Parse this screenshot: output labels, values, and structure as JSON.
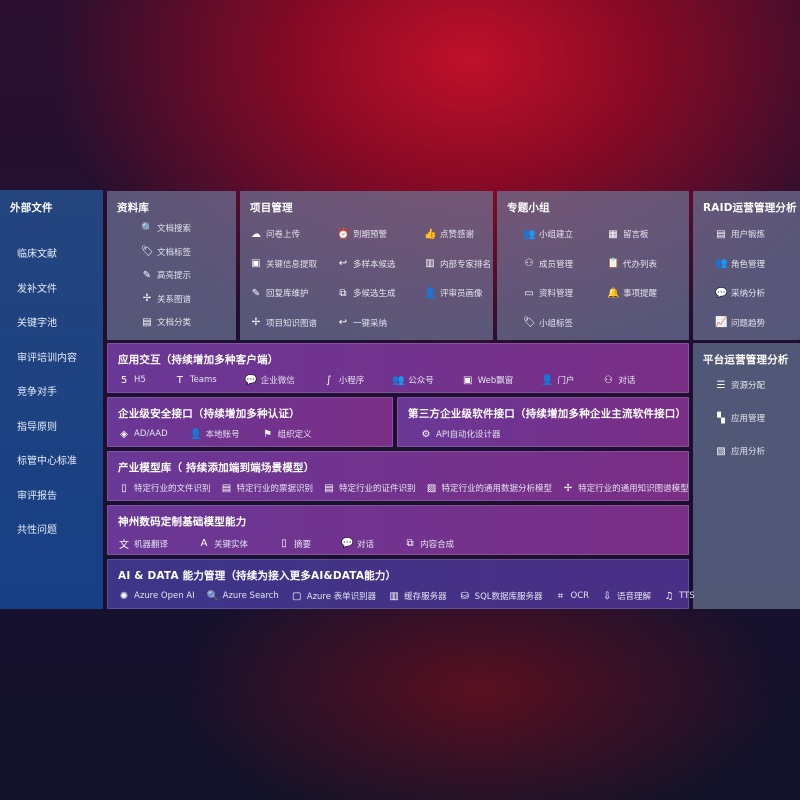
{
  "left": {
    "title": "外部文件",
    "items": [
      "临床文献",
      "发补文件",
      "关键字池",
      "审评培训内容",
      "竞争对手",
      "指导原则",
      "标管中心标准",
      "审评报告",
      "共性问题"
    ]
  },
  "library": {
    "title": "资料库",
    "items": [
      {
        "icon": "document-search",
        "label": "文档搜索"
      },
      {
        "icon": "tag",
        "label": "文档标签"
      },
      {
        "icon": "pen",
        "label": "高亮提示"
      },
      {
        "icon": "graph",
        "label": "关系图谱"
      },
      {
        "icon": "document-classify",
        "label": "文档分类"
      }
    ]
  },
  "project": {
    "title": "项目管理",
    "items": [
      {
        "icon": "cloud-upload",
        "label": "问卷上传"
      },
      {
        "icon": "alarm",
        "label": "到期预警"
      },
      {
        "icon": "thumbs-up",
        "label": "点赞感谢"
      },
      {
        "icon": "window",
        "label": "关键信息提取"
      },
      {
        "icon": "reply",
        "label": "多样本候选"
      },
      {
        "icon": "ranking",
        "label": "内部专家排名"
      },
      {
        "icon": "pen",
        "label": "回复库维护"
      },
      {
        "icon": "puzzle",
        "label": "多候选生成"
      },
      {
        "icon": "user",
        "label": "评审员画像"
      },
      {
        "icon": "graph",
        "label": "项目知识图谱"
      },
      {
        "icon": "reply",
        "label": "一键采纳"
      }
    ]
  },
  "group": {
    "title": "专题小组",
    "items": [
      {
        "icon": "users",
        "label": "小组建立"
      },
      {
        "icon": "bbs",
        "label": "留言板"
      },
      {
        "icon": "user-add",
        "label": "成员管理"
      },
      {
        "icon": "clipboard",
        "label": "代办列表"
      },
      {
        "icon": "folder",
        "label": "资料管理"
      },
      {
        "icon": "bell",
        "label": "事项提醒"
      },
      {
        "icon": "tag",
        "label": "小组标签"
      }
    ]
  },
  "raid": {
    "title": "RAID运营管理分析",
    "items": [
      {
        "icon": "id-card",
        "label": "用户锻炼"
      },
      {
        "icon": "users",
        "label": "角色管理"
      },
      {
        "icon": "qa",
        "label": "采纳分析"
      },
      {
        "icon": "trend",
        "label": "问题趋势"
      }
    ]
  },
  "platform": {
    "title": "平台运营管理分析",
    "items": [
      {
        "icon": "checklist",
        "label": "资源分配"
      },
      {
        "icon": "apps",
        "label": "应用管理"
      },
      {
        "icon": "chart",
        "label": "应用分析"
      }
    ]
  },
  "app": {
    "title": "应用交互（持续增加多种客户端）",
    "items": [
      {
        "icon": "html5",
        "label": "H5"
      },
      {
        "icon": "teams",
        "label": "Teams"
      },
      {
        "icon": "wechat",
        "label": "企业微信"
      },
      {
        "icon": "mini-program",
        "label": "小程序"
      },
      {
        "icon": "users",
        "label": "公众号"
      },
      {
        "icon": "window",
        "label": "Web飘窗"
      },
      {
        "icon": "user",
        "label": "门户"
      },
      {
        "icon": "chat-users",
        "label": "对话"
      }
    ]
  },
  "security": {
    "title": "企业级安全接口（持续增加多种认证）",
    "items": [
      {
        "icon": "diamond",
        "label": "AD/AAD"
      },
      {
        "icon": "user",
        "label": "本地账号"
      },
      {
        "icon": "org",
        "label": "组织定义"
      }
    ]
  },
  "third": {
    "title": "第三方企业级软件接口（持续增加多种企业主流软件接口）",
    "items": [
      {
        "icon": "gear",
        "label": "API自动化设计器"
      }
    ]
  },
  "industry": {
    "title": "产业模型库（ 持续添加端到端场景模型）",
    "items": [
      {
        "icon": "document",
        "label": "特定行业的文件识别"
      },
      {
        "icon": "receipt",
        "label": "特定行业的票据识别"
      },
      {
        "icon": "id-card",
        "label": "特定行业的证件识别"
      },
      {
        "icon": "image",
        "label": "特定行业的通用数据分析模型"
      },
      {
        "icon": "graph",
        "label": "特定行业的通用知识图谱模型"
      }
    ]
  },
  "base": {
    "title": "神州数码定制基础模型能力",
    "items": [
      {
        "icon": "translate",
        "label": "机器翻译"
      },
      {
        "icon": "entity",
        "label": "关键实体"
      },
      {
        "icon": "document",
        "label": "摘要"
      },
      {
        "icon": "chat",
        "label": "对话"
      },
      {
        "icon": "puzzle",
        "label": "内容合成"
      }
    ]
  },
  "ai": {
    "title": "AI & DATA 能力管理（持续为接入更多AI&DATA能力）",
    "items": [
      {
        "icon": "openai",
        "label": "Azure Open AI"
      },
      {
        "icon": "document-search",
        "label": "Azure Search"
      },
      {
        "icon": "form",
        "label": "Azure 表单识别器"
      },
      {
        "icon": "cache",
        "label": "缓存服务器"
      },
      {
        "icon": "database",
        "label": "SQL数据库服务器"
      },
      {
        "icon": "ocr",
        "label": "OCR"
      },
      {
        "icon": "voice",
        "label": "语音理解"
      },
      {
        "icon": "tts",
        "label": "TTS"
      }
    ]
  }
}
